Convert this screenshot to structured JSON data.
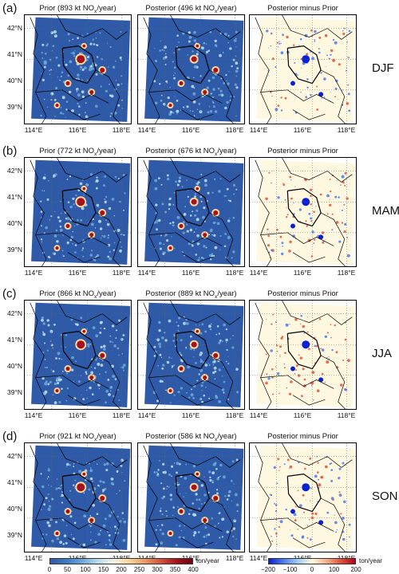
{
  "rows": [
    {
      "label": "(a)",
      "season": "DJF",
      "prior": {
        "pre": "Prior (",
        "value": "893 kt NO",
        "sub": "x",
        "post": "/year)"
      },
      "posterior": {
        "pre": "Posterior (",
        "value": "496 kt NO",
        "sub": "x",
        "post": "/year)"
      },
      "diff": "Posterior minus Prior"
    },
    {
      "label": "(b)",
      "season": "MAM",
      "prior": {
        "pre": "Prior (",
        "value": "772 kt NO",
        "sub": "x",
        "post": "/year)"
      },
      "posterior": {
        "pre": "Posterior (",
        "value": "676 kt NO",
        "sub": "x",
        "post": "/year)"
      },
      "diff": "Posterior minus Prior"
    },
    {
      "label": "(c)",
      "season": "JJA",
      "prior": {
        "pre": "Prior (",
        "value": "866 kt NO",
        "sub": "x",
        "post": "/year)"
      },
      "posterior": {
        "pre": "Posterior (",
        "value": "889 kt NO",
        "sub": "x",
        "post": "/year)"
      },
      "diff": "Posterior minus Prior"
    },
    {
      "label": "(d)",
      "season": "SON",
      "prior": {
        "pre": "Prior (",
        "value": "921 kt NO",
        "sub": "x",
        "post": "/year)"
      },
      "posterior": {
        "pre": "Posterior (",
        "value": "586 kt NO",
        "sub": "x",
        "post": "/year)"
      },
      "diff": "Posterior minus Prior"
    }
  ],
  "lat_labels": [
    "42°N",
    "41°N",
    "40°N",
    "39°N"
  ],
  "lon_labels": [
    "114°E",
    "116°E",
    "118°E"
  ],
  "colorbar_emission": {
    "ticks": [
      "0",
      "50",
      "100",
      "150",
      "200",
      "250",
      "300",
      "350",
      "400"
    ],
    "unit": "ton/year",
    "colors": [
      "#2f5aa8",
      "#3d79c4",
      "#6aa6d8",
      "#b7dbeb",
      "#f2f5e6",
      "#f6d79a",
      "#ea9a63",
      "#d1523d",
      "#a80f1e",
      "#6e0010"
    ]
  },
  "colorbar_diff": {
    "ticks": [
      "−200",
      "−100",
      "0",
      "100",
      "200"
    ],
    "unit": "ton/year",
    "colors": [
      "#0a1fd6",
      "#4d7be8",
      "#9ecbf2",
      "#fff8e0",
      "#f5b08c",
      "#e0533b",
      "#b3001a"
    ]
  }
}
